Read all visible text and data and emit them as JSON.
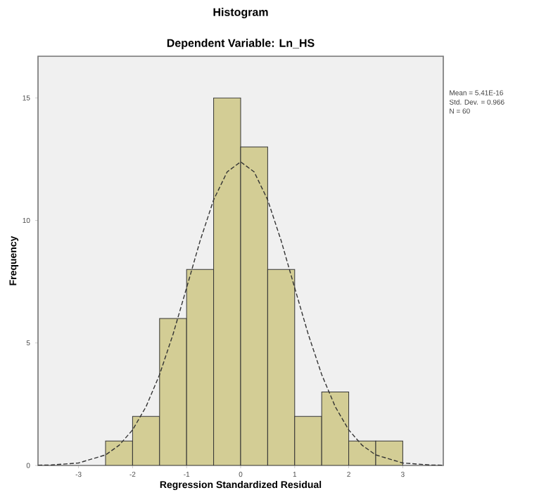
{
  "chart_data": {
    "type": "histogram",
    "title": "Histogram",
    "subtitle": "Dependent Variable: Ln_HS",
    "xlabel": "Regression Standardized Residual",
    "ylabel": "Frequency",
    "annotations": [
      "Mean = 5.41E-16",
      "Std. Dev. = 0.966",
      "N = 60"
    ],
    "bins": [
      -2.5,
      -2.0,
      -1.5,
      -1.0,
      -0.5,
      0.0,
      0.5,
      1.0,
      1.5,
      2.0,
      2.5,
      3.0
    ],
    "values": [
      1,
      2,
      6,
      8,
      15,
      13,
      8,
      2,
      3,
      1,
      1
    ],
    "color": "#d3cd95",
    "xlim": [
      -3.75,
      3.75
    ],
    "ylim": [
      0,
      16.7
    ],
    "xticks": [
      -3,
      -2,
      -1,
      0,
      1,
      2,
      3
    ],
    "yticks": [
      0,
      5,
      10,
      15
    ],
    "grid": false,
    "series": [
      {
        "type": "line",
        "color": "#333333",
        "line_style": "dashed",
        "x": [
          -3.75,
          -3.5,
          -3.0,
          -2.5,
          -2.25,
          -2.0,
          -1.75,
          -1.5,
          -1.25,
          -1.0,
          -0.75,
          -0.5,
          -0.25,
          0.0,
          0.25,
          0.5,
          0.75,
          1.0,
          1.25,
          1.5,
          1.75,
          2.0,
          2.25,
          2.5,
          3.0,
          3.5,
          3.75
        ],
        "values": [
          0.01,
          0.02,
          0.1,
          0.43,
          0.82,
          1.45,
          2.4,
          3.71,
          5.36,
          7.25,
          9.17,
          10.84,
          11.98,
          12.39,
          11.98,
          10.84,
          9.17,
          7.25,
          5.36,
          3.71,
          2.4,
          1.45,
          0.82,
          0.43,
          0.1,
          0.02,
          0.01
        ]
      }
    ]
  }
}
